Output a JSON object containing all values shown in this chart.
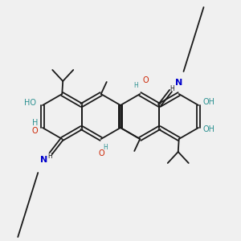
{
  "bg_color": "#f0f0f0",
  "bond_color": "#1a1a1a",
  "bond_lw": 1.3,
  "dbl_off": 0.022,
  "O_color": "#cc2200",
  "N_color": "#0000cc",
  "OH_color": "#2a9090",
  "figsize": [
    3.0,
    3.0
  ],
  "dpi": 100,
  "xlim": [
    -1.5,
    1.5
  ],
  "ylim": [
    -1.5,
    1.5
  ]
}
